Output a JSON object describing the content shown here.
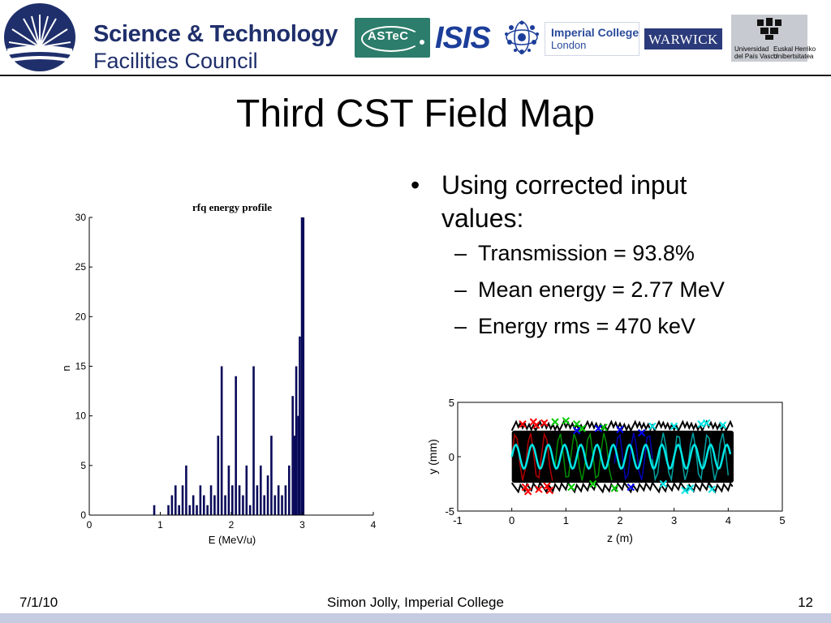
{
  "header": {
    "stfc_line1": "Science & Technology",
    "stfc_line2": "Facilities Council",
    "astec_label": "ASTeC",
    "isis_label": "ISIS",
    "imperial_line1": "Imperial College",
    "imperial_line2": "London",
    "warwick_label": "WARWICK",
    "ehu_left_1": "Universidad",
    "ehu_left_2": "del País Vasco",
    "ehu_right_1": "Euskal Herriko",
    "ehu_right_2": "Unibertsitatea"
  },
  "slide": {
    "title": "Third CST Field Map",
    "bullet": "Using corrected input values:",
    "bullet_line1": "Using corrected input",
    "bullet_line2": "values:",
    "subbullets": [
      "Transmission = 93.8%",
      "Mean energy = 2.77 MeV",
      "Energy rms = 470 keV"
    ]
  },
  "chart_data": [
    {
      "type": "bar",
      "title": "rfq energy profile",
      "xlabel": "E (MeV/u)",
      "ylabel": "n",
      "xlim": [
        0,
        4
      ],
      "ylim": [
        0,
        30
      ],
      "xticks": [
        0,
        1,
        2,
        3,
        4
      ],
      "yticks": [
        0,
        5,
        10,
        15,
        20,
        25,
        30
      ],
      "bar_color": "#0a0a5a",
      "x": [
        0.9,
        1.1,
        1.15,
        1.2,
        1.25,
        1.3,
        1.35,
        1.4,
        1.45,
        1.5,
        1.55,
        1.6,
        1.65,
        1.7,
        1.75,
        1.8,
        1.85,
        1.9,
        1.95,
        2.0,
        2.05,
        2.1,
        2.15,
        2.2,
        2.25,
        2.3,
        2.35,
        2.4,
        2.45,
        2.5,
        2.55,
        2.6,
        2.65,
        2.7,
        2.75,
        2.8,
        2.85,
        2.88,
        2.9,
        2.93,
        2.95,
        2.98,
        3.0
      ],
      "values": [
        1,
        1,
        2,
        3,
        1,
        3,
        5,
        1,
        2,
        1,
        3,
        2,
        1,
        3,
        2,
        8,
        15,
        2,
        5,
        3,
        14,
        3,
        2,
        5,
        1,
        15,
        3,
        5,
        2,
        4,
        8,
        2,
        3,
        2,
        3,
        5,
        12,
        8,
        15,
        10,
        18,
        30,
        30
      ]
    },
    {
      "type": "scatter",
      "title": "",
      "xlabel": "z (m)",
      "ylabel": "y (mm)",
      "xlim": [
        -1,
        5
      ],
      "ylim": [
        -5,
        5
      ],
      "xticks": [
        -1,
        0,
        1,
        2,
        3,
        4,
        5
      ],
      "yticks": [
        -5,
        0,
        5
      ],
      "band": {
        "z_start": 0,
        "z_end": 4.1,
        "y_min": -2.4,
        "y_max": 2.4,
        "color": "#000000"
      },
      "series": [
        {
          "color": "#ff0000",
          "z": [
            0.2,
            0.3,
            0.4,
            0.5,
            0.6,
            0.7,
            0.25,
            0.45,
            0.65
          ],
          "y": [
            3.0,
            -3.2,
            3.2,
            -3.0,
            3.1,
            -3.1,
            -2.8,
            2.9,
            -2.7
          ]
        },
        {
          "color": "#00cc00",
          "z": [
            0.8,
            1.0,
            1.1,
            1.3,
            1.5,
            1.7,
            1.9,
            1.2
          ],
          "y": [
            3.2,
            3.3,
            -2.8,
            2.6,
            -2.5,
            2.7,
            -2.9,
            3.0
          ]
        },
        {
          "color": "#0000ff",
          "z": [
            1.2,
            1.6,
            2.0,
            2.2,
            2.4
          ],
          "y": [
            2.4,
            2.6,
            2.5,
            -2.8,
            2.2
          ]
        },
        {
          "color": "#00e5e5",
          "z": [
            2.6,
            2.8,
            3.0,
            3.3,
            3.5,
            3.7,
            3.9,
            3.6,
            3.2
          ],
          "y": [
            2.8,
            -2.5,
            2.8,
            -2.9,
            3.0,
            -3.0,
            2.9,
            3.1,
            -3.1
          ]
        }
      ],
      "wave": {
        "color": "#00e5e5",
        "amplitude": 1.1,
        "wavelength": 0.3
      }
    }
  ],
  "footer": {
    "date": "7/1/10",
    "author": "Simon Jolly, Imperial College",
    "page": "12"
  }
}
